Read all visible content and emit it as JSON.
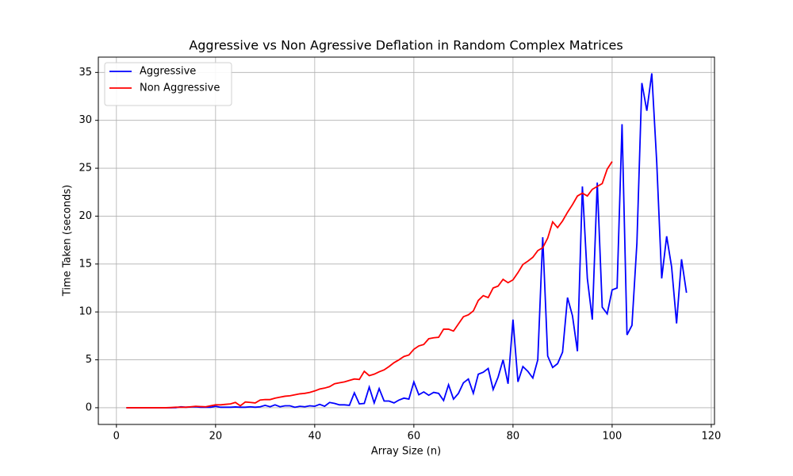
{
  "chart_data": {
    "type": "line",
    "title": "Aggressive vs Non Agressive Deflation in Random Complex Matrices",
    "xlabel": "Array Size (n)",
    "ylabel": "Time Taken (seconds)",
    "xlim": [
      -3.65,
      120.65
    ],
    "ylim": [
      -1.745,
      36.6
    ],
    "xticks": [
      0,
      20,
      40,
      60,
      80,
      100,
      120
    ],
    "yticks": [
      0,
      5,
      10,
      15,
      20,
      25,
      30,
      35
    ],
    "grid": true,
    "legend": "upper-left",
    "series": [
      {
        "name": "Aggressive",
        "color": "#0000ff",
        "x": [
          2,
          3,
          4,
          5,
          6,
          7,
          8,
          9,
          10,
          11,
          12,
          13,
          14,
          15,
          16,
          17,
          18,
          19,
          20,
          21,
          22,
          23,
          24,
          25,
          26,
          27,
          28,
          29,
          30,
          31,
          32,
          33,
          34,
          35,
          36,
          37,
          38,
          39,
          40,
          41,
          42,
          43,
          44,
          45,
          46,
          47,
          48,
          49,
          50,
          51,
          52,
          53,
          54,
          55,
          56,
          57,
          58,
          59,
          60,
          61,
          62,
          63,
          64,
          65,
          66,
          67,
          68,
          69,
          70,
          71,
          72,
          73,
          74,
          75,
          76,
          77,
          78,
          79,
          80,
          81,
          82,
          83,
          84,
          85,
          86,
          87,
          88,
          89,
          90,
          91,
          92,
          93,
          94,
          95,
          96,
          97,
          98,
          99,
          100,
          101,
          102,
          103,
          104,
          105,
          106,
          107,
          108,
          109,
          110,
          111,
          112,
          113,
          114,
          115
        ],
        "values": [
          0,
          0,
          0,
          0,
          0,
          0,
          0,
          0,
          0,
          0,
          0.01,
          0.1,
          0.05,
          0.08,
          0.1,
          0.05,
          0.05,
          0.05,
          0.15,
          0.05,
          0.05,
          0.05,
          0.08,
          0.05,
          0.05,
          0.1,
          0.05,
          0.1,
          0.25,
          0.1,
          0.3,
          0.1,
          0.2,
          0.2,
          0.05,
          0.15,
          0.1,
          0.2,
          0.15,
          0.35,
          0.15,
          0.55,
          0.45,
          0.3,
          0.3,
          0.25,
          1.55,
          0.4,
          0.45,
          2.15,
          0.5,
          2.0,
          0.7,
          0.7,
          0.5,
          0.8,
          1.0,
          0.9,
          2.7,
          1.35,
          1.65,
          1.3,
          1.6,
          1.5,
          0.75,
          2.4,
          0.9,
          1.5,
          2.6,
          3.0,
          1.5,
          3.5,
          3.7,
          4.1,
          1.9,
          3.2,
          5.0,
          2.5,
          9.2,
          2.7,
          4.3,
          3.8,
          3.1,
          5.0,
          17.8,
          5.4,
          4.2,
          4.6,
          5.8,
          11.5,
          9.6,
          5.9,
          23.1,
          13.5,
          9.2,
          23.5,
          10.5,
          9.8,
          12.3,
          12.5,
          29.6,
          7.6,
          8.6,
          17.2,
          33.9,
          31.0,
          34.9,
          25.6,
          13.5,
          17.9,
          14.7,
          8.8,
          15.5,
          12.0
        ]
      },
      {
        "name": "Non Aggressive",
        "color": "#ff0000",
        "x": [
          2,
          3,
          4,
          5,
          6,
          7,
          8,
          9,
          10,
          11,
          12,
          13,
          14,
          15,
          16,
          17,
          18,
          19,
          20,
          21,
          22,
          23,
          24,
          25,
          26,
          27,
          28,
          29,
          30,
          31,
          32,
          33,
          34,
          35,
          36,
          37,
          38,
          39,
          40,
          41,
          42,
          43,
          44,
          45,
          46,
          47,
          48,
          49,
          50,
          51,
          52,
          53,
          54,
          55,
          56,
          57,
          58,
          59,
          60,
          61,
          62,
          63,
          64,
          65,
          66,
          67,
          68,
          69,
          70,
          71,
          72,
          73,
          74,
          75,
          76,
          77,
          78,
          79,
          80,
          81,
          82,
          83,
          84,
          85,
          86,
          87,
          88,
          89,
          90,
          91,
          92,
          93,
          94,
          95,
          96,
          97,
          98,
          99,
          100
        ],
        "values": [
          0,
          0,
          0,
          0,
          0,
          0,
          0,
          0,
          0,
          0.02,
          0.05,
          0.05,
          0.05,
          0.1,
          0.15,
          0.12,
          0.1,
          0.2,
          0.3,
          0.3,
          0.35,
          0.4,
          0.55,
          0.2,
          0.6,
          0.55,
          0.5,
          0.8,
          0.85,
          0.85,
          1.0,
          1.1,
          1.2,
          1.25,
          1.35,
          1.45,
          1.5,
          1.6,
          1.75,
          1.95,
          2.05,
          2.2,
          2.5,
          2.6,
          2.7,
          2.85,
          3.0,
          2.95,
          3.8,
          3.35,
          3.5,
          3.75,
          3.95,
          4.3,
          4.7,
          5.0,
          5.35,
          5.5,
          6.1,
          6.45,
          6.6,
          7.2,
          7.3,
          7.35,
          8.2,
          8.2,
          8.0,
          8.75,
          9.5,
          9.7,
          10.1,
          11.2,
          11.7,
          11.5,
          12.5,
          12.7,
          13.4,
          13.05,
          13.35,
          14.1,
          14.95,
          15.3,
          15.7,
          16.4,
          16.7,
          17.7,
          19.4,
          18.8,
          19.5,
          20.4,
          21.2,
          22.1,
          22.4,
          22.1,
          22.8,
          23.1,
          23.4,
          24.9,
          25.7
        ]
      }
    ]
  }
}
